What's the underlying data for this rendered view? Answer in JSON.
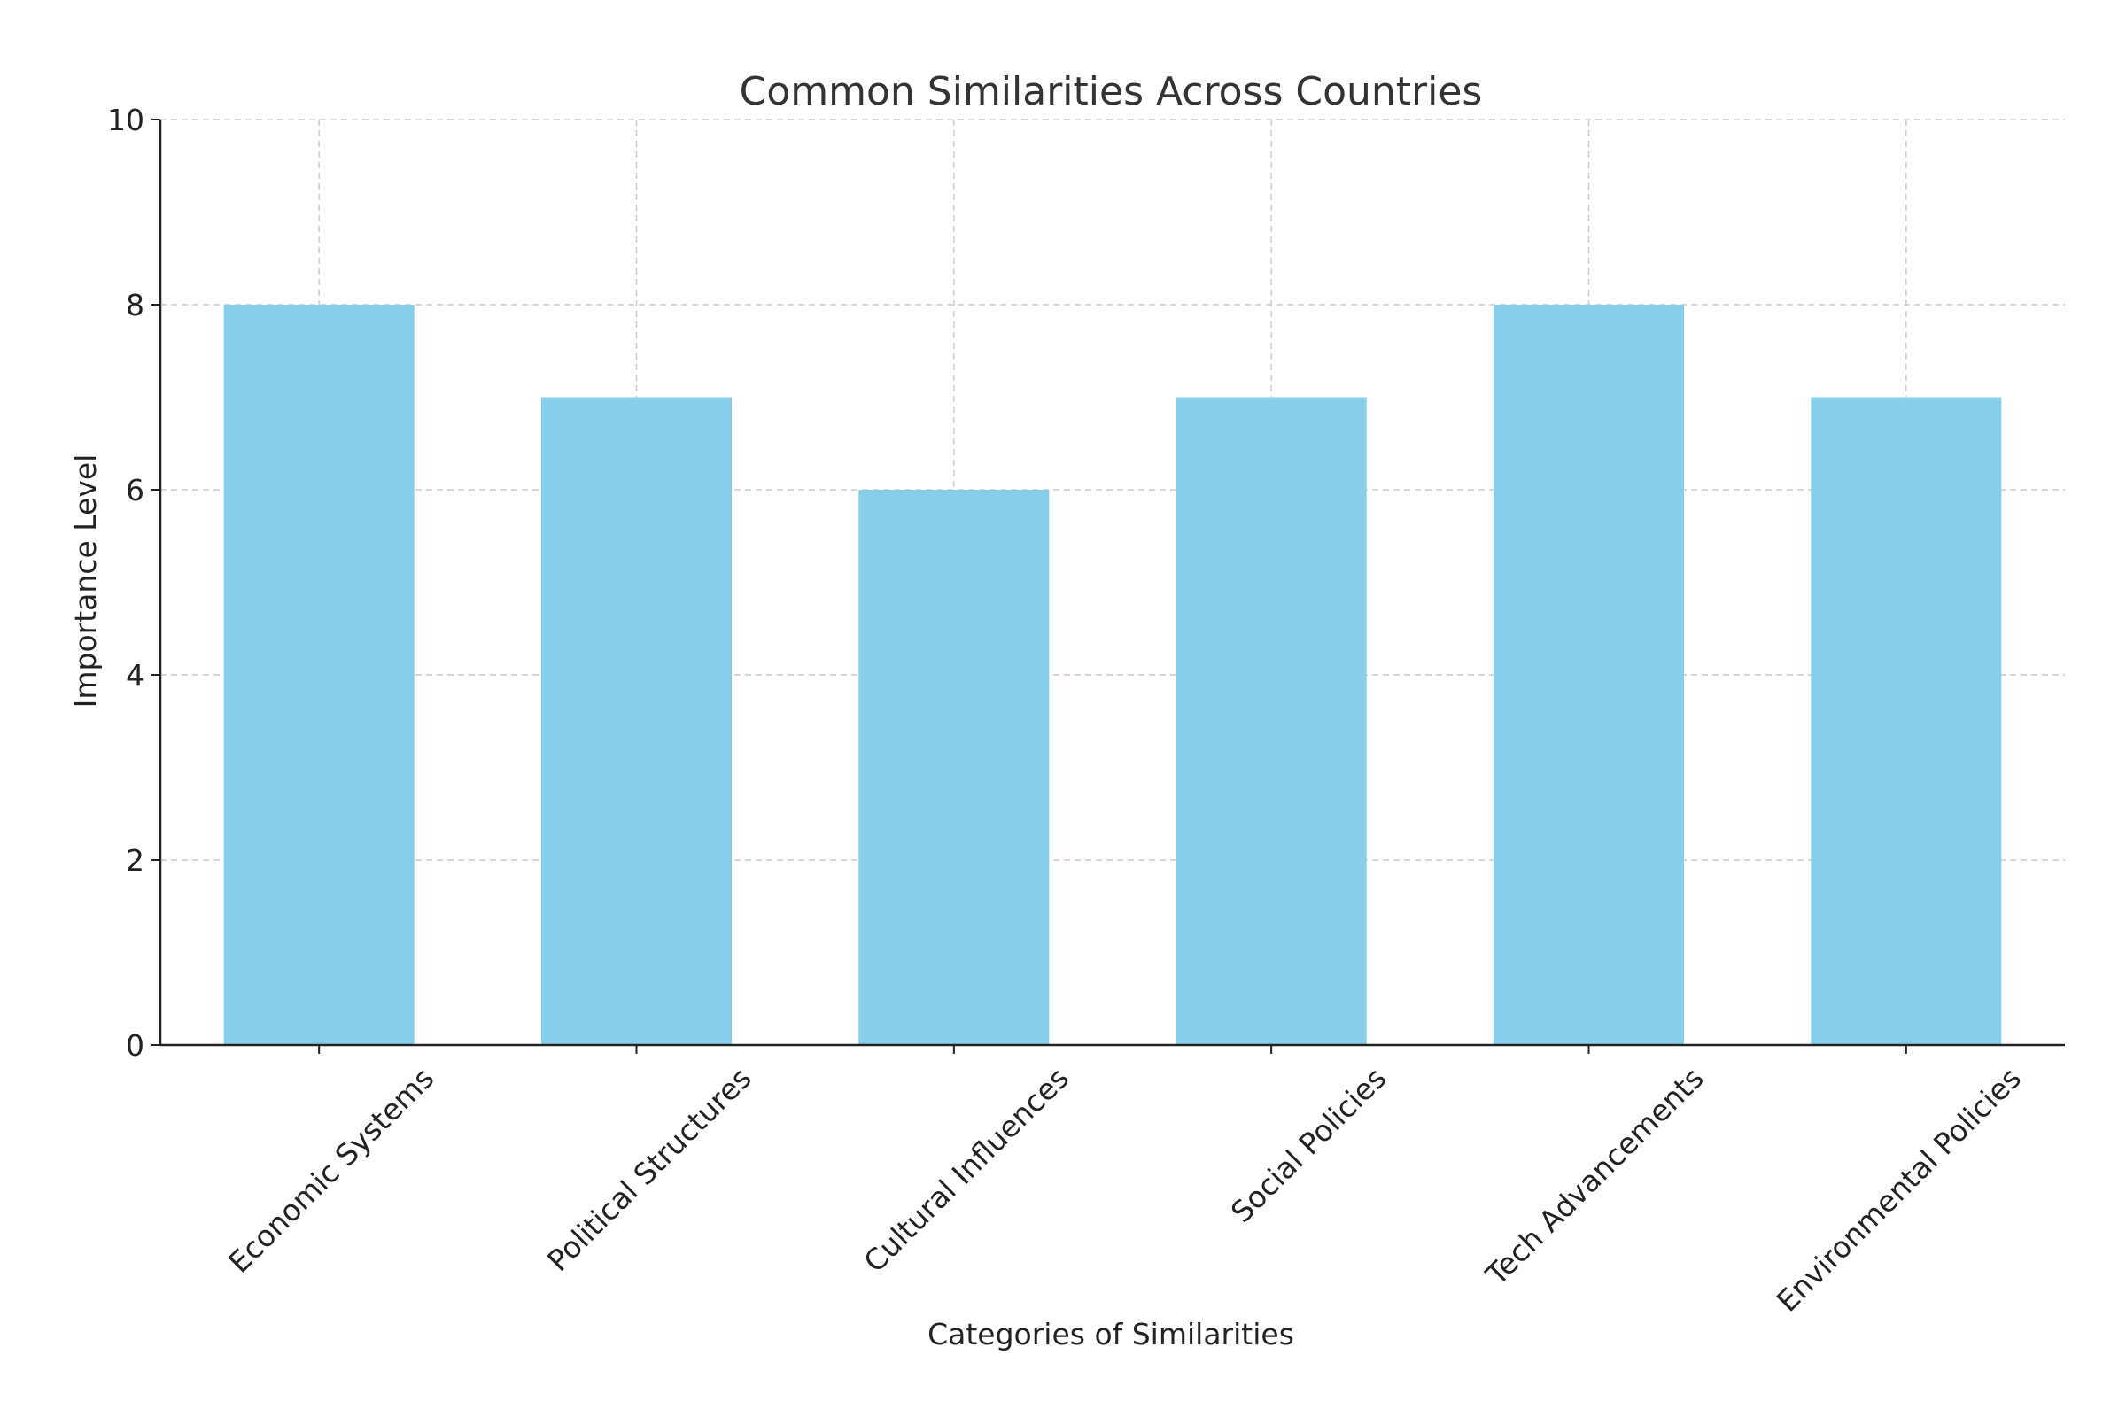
{
  "chart_data": {
    "type": "bar",
    "title": "Common Similarities Across Countries",
    "xlabel": "Categories of Similarities",
    "ylabel": "Importance Level",
    "categories": [
      "Economic Systems",
      "Political Structures",
      "Cultural Influences",
      "Social Policies",
      "Tech Advancements",
      "Environmental Policies"
    ],
    "values": [
      8,
      7,
      6,
      7,
      8,
      7
    ],
    "ylim": [
      0,
      10
    ],
    "yticks": [
      0,
      2,
      4,
      6,
      8,
      10
    ],
    "grid": true,
    "bar_color": "#87CEEB",
    "tick_label_rotation_deg": 45
  }
}
